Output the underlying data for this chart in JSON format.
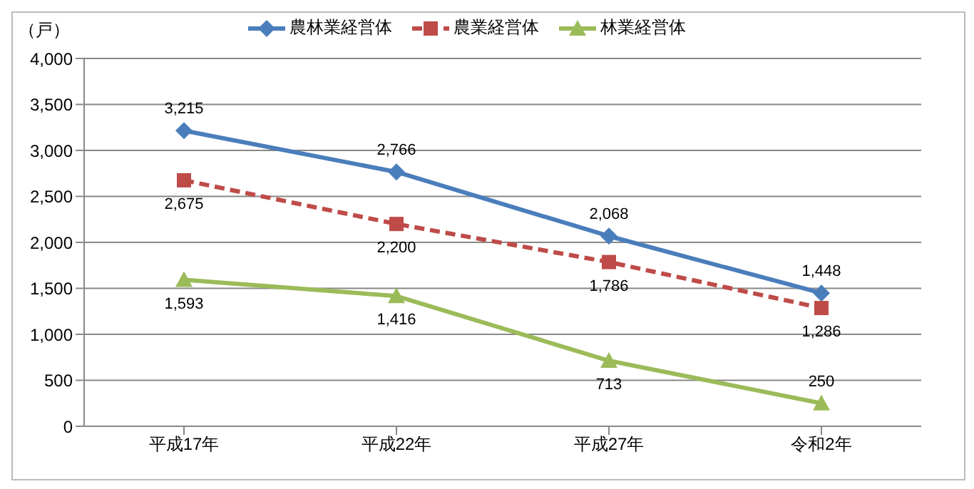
{
  "chart_data": {
    "type": "line",
    "ylabel": "（戸）",
    "categories": [
      "平成17年",
      "平成22年",
      "平成27年",
      "令和2年"
    ],
    "series": [
      {
        "name": "農林業経営体",
        "color": "#4a7ebb",
        "marker": "diamond",
        "line_style": "solid",
        "values": [
          3215,
          2766,
          2068,
          1448
        ],
        "value_labels": [
          "3,215",
          "2,766",
          "2,068",
          "1,448"
        ]
      },
      {
        "name": "農業経営体",
        "color": "#be4b48",
        "marker": "square",
        "line_style": "dashed",
        "values": [
          2675,
          2200,
          1786,
          1286
        ],
        "value_labels": [
          "2,675",
          "2,200",
          "1,786",
          "1,286"
        ]
      },
      {
        "name": "林業経営体",
        "color": "#9bbb59",
        "marker": "triangle",
        "line_style": "solid",
        "values": [
          1593,
          1416,
          713,
          250
        ],
        "value_labels": [
          "1,593",
          "1,416",
          "713",
          "250"
        ]
      }
    ],
    "ylim": [
      0,
      4000
    ],
    "yticks": [
      0,
      500,
      {
        "value": 1000,
        "label": "1,000"
      },
      {
        "value": 1500,
        "label": "1,500"
      },
      {
        "value": 2000,
        "label": "2,000"
      },
      {
        "value": 2500,
        "label": "2,500"
      },
      {
        "value": 3000,
        "label": "3,000"
      },
      {
        "value": 3500,
        "label": "3,500"
      },
      {
        "value": 4000,
        "label": "4,000"
      }
    ],
    "grid": "y",
    "legend": "top"
  }
}
